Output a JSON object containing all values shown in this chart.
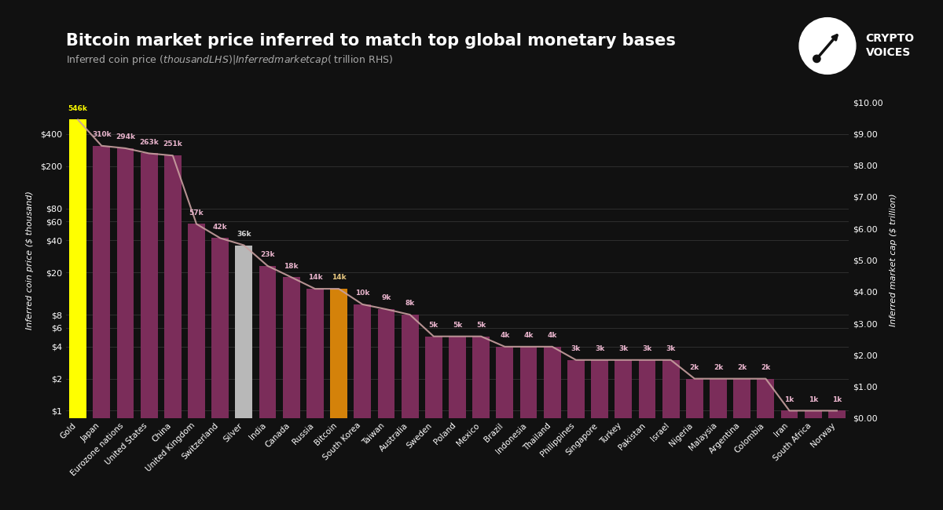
{
  "title": "Bitcoin market price inferred to match top global monetary bases",
  "subtitle": "Inferred coin price ($ thousand LHS) | Inferred market cap ($ trillion RHS)",
  "categories": [
    "Gold",
    "Japan",
    "Eurozone nations",
    "United States",
    "China",
    "United Kingdom",
    "Switzerland",
    "Silver",
    "India",
    "Canada",
    "Russia",
    "Bitcoin",
    "South Korea",
    "Taiwan",
    "Australia",
    "Sweden",
    "Poland",
    "Mexico",
    "Brazil",
    "Indonesia",
    "Thailand",
    "Philippines",
    "Singapore",
    "Turkey",
    "Pakistan",
    "Israel",
    "Nigeria",
    "Malaysia",
    "Argentina",
    "Colombia",
    "Iran",
    "South Africa",
    "Norway"
  ],
  "values_k": [
    546,
    310,
    294,
    263,
    251,
    57,
    42,
    36,
    23,
    18,
    14,
    14,
    10,
    9,
    8,
    5,
    5,
    5,
    4,
    4,
    4,
    3,
    3,
    3,
    3,
    3,
    2,
    2,
    2,
    2,
    1,
    1,
    1
  ],
  "bar_colors": [
    "#ffff00",
    "#7b2d5a",
    "#7b2d5a",
    "#7b2d5a",
    "#7b2d5a",
    "#7b2d5a",
    "#7b2d5a",
    "#b8b8b8",
    "#7b2d5a",
    "#7b2d5a",
    "#7b2d5a",
    "#d4820a",
    "#7b2d5a",
    "#7b2d5a",
    "#7b2d5a",
    "#7b2d5a",
    "#7b2d5a",
    "#7b2d5a",
    "#7b2d5a",
    "#7b2d5a",
    "#7b2d5a",
    "#7b2d5a",
    "#7b2d5a",
    "#7b2d5a",
    "#7b2d5a",
    "#7b2d5a",
    "#7b2d5a",
    "#7b2d5a",
    "#7b2d5a",
    "#7b2d5a",
    "#7b2d5a",
    "#7b2d5a",
    "#7b2d5a"
  ],
  "label_colors": [
    "#ffff00",
    "#e8b4cc",
    "#e8b4cc",
    "#e8b4cc",
    "#e8b4cc",
    "#e8b4cc",
    "#e8b4cc",
    "#d8d8d8",
    "#e8b4cc",
    "#e8b4cc",
    "#e8b4cc",
    "#e8c880",
    "#e8b4cc",
    "#e8b4cc",
    "#e8b4cc",
    "#e8b4cc",
    "#e8b4cc",
    "#e8b4cc",
    "#e8b4cc",
    "#e8b4cc",
    "#e8b4cc",
    "#e8b4cc",
    "#e8b4cc",
    "#e8b4cc",
    "#e8b4cc",
    "#e8b4cc",
    "#e8b4cc",
    "#e8b4cc",
    "#e8b4cc",
    "#e8b4cc",
    "#e8b4cc",
    "#e8b4cc",
    "#e8b4cc"
  ],
  "background_color": "#111111",
  "ylabel_left": "Inferred coin price ($ thousand)",
  "ylabel_right": "Inferred market cap ($ trillion)",
  "y_log_ticks": [
    1,
    2,
    4,
    6,
    8,
    20,
    40,
    60,
    80,
    200,
    400
  ],
  "y_log_labels": [
    "$1",
    "$2",
    "$4",
    "$6",
    "$8",
    "$20",
    "$40",
    "$60",
    "$80",
    "$200",
    "$400"
  ],
  "rhs_ticks": [
    0.0,
    1.0,
    2.0,
    3.0,
    4.0,
    5.0,
    6.0,
    7.0,
    8.0,
    9.0,
    10.0
  ],
  "rhs_labels": [
    "$0.00",
    "$1.00",
    "$2.00",
    "$3.00",
    "$4.00",
    "$5.00",
    "$6.00",
    "$7.00",
    "$8.00",
    "$9.00",
    "$10.00"
  ],
  "ylim_min": 0.85,
  "ylim_max": 800,
  "grid_color": "#333333",
  "line_color": "#c8a0a0",
  "title_fontsize": 15,
  "subtitle_fontsize": 9,
  "tick_fontsize": 8,
  "bar_label_fontsize": 6.5,
  "ylabel_fontsize": 8
}
